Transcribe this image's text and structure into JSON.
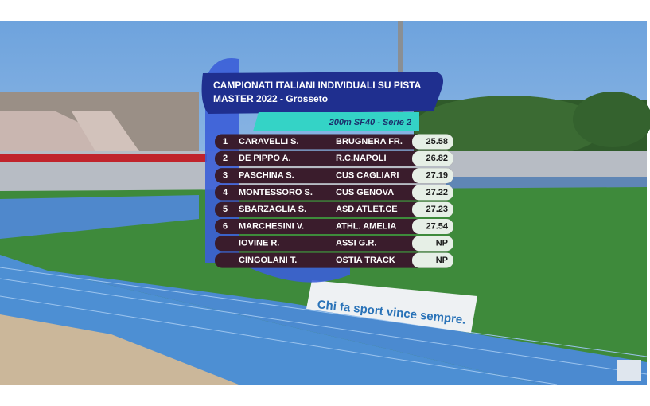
{
  "header": {
    "title_line1": "CAMPIONATI ITALIANI INDIVIDUALI SU PISTA",
    "title_line2": "MASTER 2022 - Grosseto"
  },
  "event": "200m SF40 - Serie 2",
  "results": [
    {
      "rank": "1",
      "name": "CARAVELLI S.",
      "club": "BRUGNERA FR.",
      "time": "25.58"
    },
    {
      "rank": "2",
      "name": "DE PIPPO A.",
      "club": "R.C.NAPOLI",
      "time": "26.82"
    },
    {
      "rank": "3",
      "name": "PASCHINA S.",
      "club": "CUS CAGLIARI",
      "time": "27.19"
    },
    {
      "rank": "4",
      "name": "MONTESSORO S.",
      "club": "CUS GENOVA",
      "time": "27.22"
    },
    {
      "rank": "5",
      "name": "SBARZAGLIA S.",
      "club": "ASD ATLET.CE",
      "time": "27.23"
    },
    {
      "rank": "6",
      "name": "MARCHESINI V.",
      "club": "ATHL. AMELIA",
      "time": "27.54"
    },
    {
      "rank": null,
      "name": "IOVINE R.",
      "club": "ASSI G.R.",
      "time": "NP"
    },
    {
      "rank": null,
      "name": "CINGOLANI T.",
      "club": "OSTIA TRACK",
      "time": "NP"
    }
  ],
  "banner": "Chi fa sport vince sempre."
}
